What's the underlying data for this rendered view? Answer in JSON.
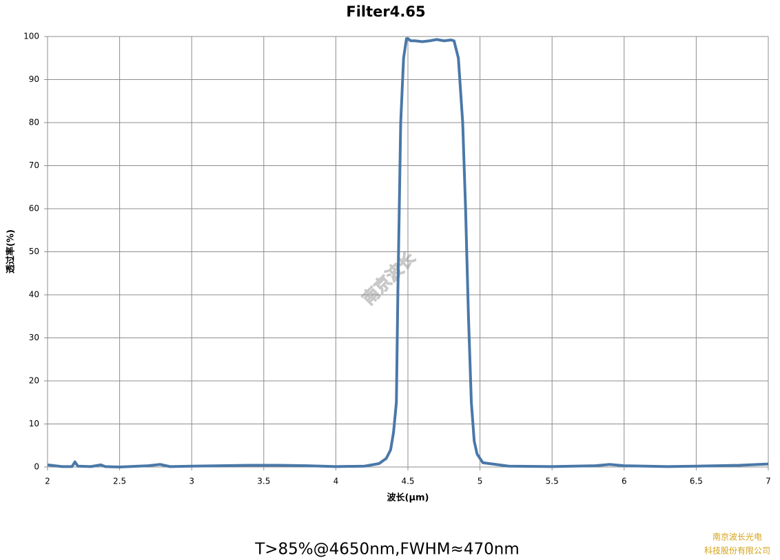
{
  "chart_data": {
    "type": "line",
    "title": "Filter4.65",
    "x_label": "波长(μm)",
    "y_label": "透过率(%)",
    "annotation": "T>85%@4650nm,FWHM≈470nm",
    "watermark": "南京波长",
    "footer": [
      "南京波长光电",
      "科技股份有限公司"
    ],
    "x": [
      2.0,
      2.1,
      2.17,
      2.19,
      2.21,
      2.3,
      2.37,
      2.4,
      2.5,
      2.7,
      2.78,
      2.85,
      3.0,
      3.2,
      3.4,
      3.6,
      3.8,
      4.0,
      4.2,
      4.3,
      4.35,
      4.38,
      4.4,
      4.42,
      4.43,
      4.45,
      4.47,
      4.49,
      4.5,
      4.52,
      4.55,
      4.6,
      4.65,
      4.7,
      4.75,
      4.8,
      4.82,
      4.85,
      4.88,
      4.9,
      4.92,
      4.94,
      4.96,
      4.98,
      5.02,
      5.2,
      5.5,
      5.8,
      5.9,
      6.0,
      6.3,
      6.5,
      6.8,
      7.0
    ],
    "values": [
      0.5,
      0.1,
      0.1,
      1.2,
      0.2,
      0.1,
      0.5,
      0.1,
      0.0,
      0.3,
      0.6,
      0.1,
      0.2,
      0.3,
      0.4,
      0.4,
      0.3,
      0.1,
      0.2,
      0.8,
      2,
      4,
      8,
      15,
      40,
      80,
      95,
      99.5,
      99.5,
      99,
      99,
      98.8,
      99,
      99.3,
      99,
      99.2,
      99,
      95,
      80,
      60,
      35,
      15,
      6,
      3,
      1,
      0.2,
      0.1,
      0.3,
      0.6,
      0.3,
      0.1,
      0.2,
      0.4,
      0.7
    ],
    "color": "#4a78a8",
    "xlim": [
      2,
      7
    ],
    "xticks": [
      2,
      2.5,
      3,
      3.5,
      4,
      4.5,
      5,
      5.5,
      6,
      6.5,
      7
    ],
    "ylim": [
      0,
      100
    ],
    "yticks": [
      0,
      10,
      20,
      30,
      40,
      50,
      60,
      70,
      80,
      90,
      100
    ],
    "grid": true
  }
}
